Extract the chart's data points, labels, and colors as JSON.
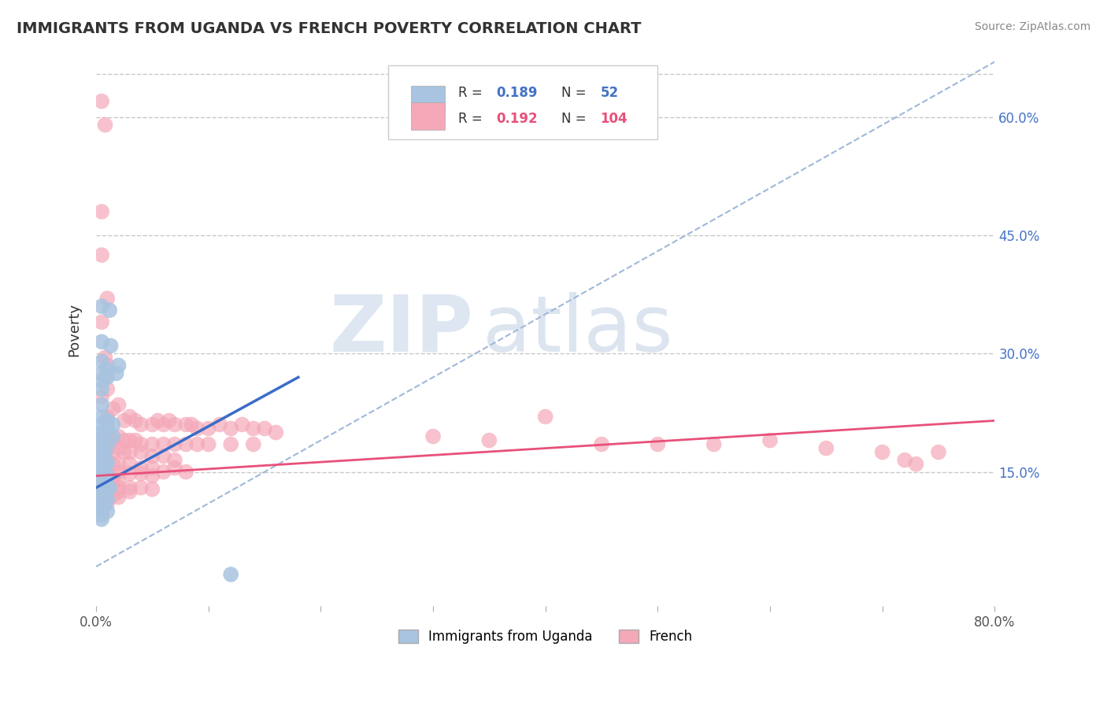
{
  "title": "IMMIGRANTS FROM UGANDA VS FRENCH POVERTY CORRELATION CHART",
  "source": "Source: ZipAtlas.com",
  "ylabel": "Poverty",
  "ytick_labels": [
    "15.0%",
    "30.0%",
    "45.0%",
    "60.0%"
  ],
  "ytick_values": [
    0.15,
    0.3,
    0.45,
    0.6
  ],
  "xlim": [
    0.0,
    0.8
  ],
  "ylim": [
    -0.02,
    0.68
  ],
  "blue_color": "#a8c4e0",
  "pink_color": "#f4a8b8",
  "blue_line_color": "#3a6cc8",
  "pink_line_color": "#e8507a",
  "trendline_color": "#a0b8d8",
  "watermark_zip": "ZIP",
  "watermark_atlas": "atlas",
  "legend_label1": "Immigrants from Uganda",
  "legend_label2": "French",
  "blue_line_x": [
    0.0,
    0.18
  ],
  "blue_line_y": [
    0.13,
    0.27
  ],
  "pink_line_x": [
    0.0,
    0.8
  ],
  "pink_line_y": [
    0.145,
    0.215
  ],
  "trendline_x": [
    0.0,
    0.8
  ],
  "trendline_y": [
    0.03,
    0.67
  ],
  "blue_scatter": [
    [
      0.005,
      0.36
    ],
    [
      0.012,
      0.355
    ],
    [
      0.005,
      0.315
    ],
    [
      0.013,
      0.31
    ],
    [
      0.005,
      0.29
    ],
    [
      0.01,
      0.28
    ],
    [
      0.005,
      0.275
    ],
    [
      0.005,
      0.265
    ],
    [
      0.01,
      0.27
    ],
    [
      0.005,
      0.255
    ],
    [
      0.02,
      0.285
    ],
    [
      0.005,
      0.235
    ],
    [
      0.018,
      0.275
    ],
    [
      0.005,
      0.22
    ],
    [
      0.005,
      0.21
    ],
    [
      0.01,
      0.215
    ],
    [
      0.015,
      0.21
    ],
    [
      0.005,
      0.2
    ],
    [
      0.01,
      0.205
    ],
    [
      0.005,
      0.195
    ],
    [
      0.015,
      0.195
    ],
    [
      0.005,
      0.185
    ],
    [
      0.01,
      0.185
    ],
    [
      0.005,
      0.175
    ],
    [
      0.008,
      0.175
    ],
    [
      0.005,
      0.168
    ],
    [
      0.005,
      0.162
    ],
    [
      0.01,
      0.162
    ],
    [
      0.005,
      0.156
    ],
    [
      0.008,
      0.158
    ],
    [
      0.005,
      0.15
    ],
    [
      0.008,
      0.152
    ],
    [
      0.005,
      0.145
    ],
    [
      0.01,
      0.145
    ],
    [
      0.005,
      0.14
    ],
    [
      0.005,
      0.135
    ],
    [
      0.008,
      0.138
    ],
    [
      0.005,
      0.13
    ],
    [
      0.012,
      0.13
    ],
    [
      0.005,
      0.125
    ],
    [
      0.01,
      0.128
    ],
    [
      0.005,
      0.12
    ],
    [
      0.005,
      0.115
    ],
    [
      0.01,
      0.115
    ],
    [
      0.005,
      0.11
    ],
    [
      0.005,
      0.105
    ],
    [
      0.008,
      0.108
    ],
    [
      0.005,
      0.1
    ],
    [
      0.01,
      0.1
    ],
    [
      0.005,
      0.095
    ],
    [
      0.005,
      0.09
    ],
    [
      0.12,
      0.02
    ]
  ],
  "pink_scatter": [
    [
      0.005,
      0.62
    ],
    [
      0.008,
      0.59
    ],
    [
      0.005,
      0.48
    ],
    [
      0.005,
      0.425
    ],
    [
      0.01,
      0.37
    ],
    [
      0.005,
      0.34
    ],
    [
      0.01,
      0.285
    ],
    [
      0.008,
      0.295
    ],
    [
      0.008,
      0.27
    ],
    [
      0.01,
      0.255
    ],
    [
      0.005,
      0.245
    ],
    [
      0.015,
      0.23
    ],
    [
      0.02,
      0.235
    ],
    [
      0.01,
      0.22
    ],
    [
      0.025,
      0.215
    ],
    [
      0.03,
      0.22
    ],
    [
      0.035,
      0.215
    ],
    [
      0.04,
      0.21
    ],
    [
      0.05,
      0.21
    ],
    [
      0.055,
      0.215
    ],
    [
      0.06,
      0.21
    ],
    [
      0.065,
      0.215
    ],
    [
      0.07,
      0.21
    ],
    [
      0.08,
      0.21
    ],
    [
      0.085,
      0.21
    ],
    [
      0.09,
      0.205
    ],
    [
      0.1,
      0.205
    ],
    [
      0.11,
      0.21
    ],
    [
      0.12,
      0.205
    ],
    [
      0.13,
      0.21
    ],
    [
      0.14,
      0.205
    ],
    [
      0.15,
      0.205
    ],
    [
      0.16,
      0.2
    ],
    [
      0.005,
      0.19
    ],
    [
      0.01,
      0.195
    ],
    [
      0.015,
      0.19
    ],
    [
      0.02,
      0.195
    ],
    [
      0.025,
      0.19
    ],
    [
      0.03,
      0.19
    ],
    [
      0.035,
      0.19
    ],
    [
      0.04,
      0.185
    ],
    [
      0.05,
      0.185
    ],
    [
      0.06,
      0.185
    ],
    [
      0.07,
      0.185
    ],
    [
      0.08,
      0.185
    ],
    [
      0.09,
      0.185
    ],
    [
      0.1,
      0.185
    ],
    [
      0.12,
      0.185
    ],
    [
      0.14,
      0.185
    ],
    [
      0.005,
      0.18
    ],
    [
      0.01,
      0.18
    ],
    [
      0.015,
      0.175
    ],
    [
      0.02,
      0.18
    ],
    [
      0.025,
      0.175
    ],
    [
      0.03,
      0.175
    ],
    [
      0.04,
      0.175
    ],
    [
      0.05,
      0.17
    ],
    [
      0.06,
      0.17
    ],
    [
      0.07,
      0.165
    ],
    [
      0.005,
      0.165
    ],
    [
      0.01,
      0.165
    ],
    [
      0.015,
      0.16
    ],
    [
      0.02,
      0.16
    ],
    [
      0.03,
      0.16
    ],
    [
      0.04,
      0.155
    ],
    [
      0.05,
      0.155
    ],
    [
      0.06,
      0.15
    ],
    [
      0.07,
      0.155
    ],
    [
      0.08,
      0.15
    ],
    [
      0.005,
      0.155
    ],
    [
      0.01,
      0.15
    ],
    [
      0.02,
      0.15
    ],
    [
      0.03,
      0.148
    ],
    [
      0.04,
      0.148
    ],
    [
      0.05,
      0.145
    ],
    [
      0.005,
      0.145
    ],
    [
      0.01,
      0.145
    ],
    [
      0.015,
      0.14
    ],
    [
      0.02,
      0.14
    ],
    [
      0.005,
      0.14
    ],
    [
      0.015,
      0.138
    ],
    [
      0.005,
      0.135
    ],
    [
      0.01,
      0.132
    ],
    [
      0.02,
      0.13
    ],
    [
      0.03,
      0.13
    ],
    [
      0.04,
      0.13
    ],
    [
      0.05,
      0.128
    ],
    [
      0.005,
      0.128
    ],
    [
      0.01,
      0.125
    ],
    [
      0.02,
      0.125
    ],
    [
      0.03,
      0.125
    ],
    [
      0.005,
      0.12
    ],
    [
      0.008,
      0.12
    ],
    [
      0.015,
      0.12
    ],
    [
      0.02,
      0.118
    ],
    [
      0.005,
      0.115
    ],
    [
      0.01,
      0.115
    ],
    [
      0.005,
      0.11
    ],
    [
      0.01,
      0.11
    ],
    [
      0.005,
      0.105
    ],
    [
      0.3,
      0.195
    ],
    [
      0.35,
      0.19
    ],
    [
      0.4,
      0.22
    ],
    [
      0.45,
      0.185
    ],
    [
      0.5,
      0.185
    ],
    [
      0.55,
      0.185
    ],
    [
      0.6,
      0.19
    ],
    [
      0.65,
      0.18
    ],
    [
      0.7,
      0.175
    ],
    [
      0.75,
      0.175
    ],
    [
      0.72,
      0.165
    ],
    [
      0.73,
      0.16
    ]
  ]
}
